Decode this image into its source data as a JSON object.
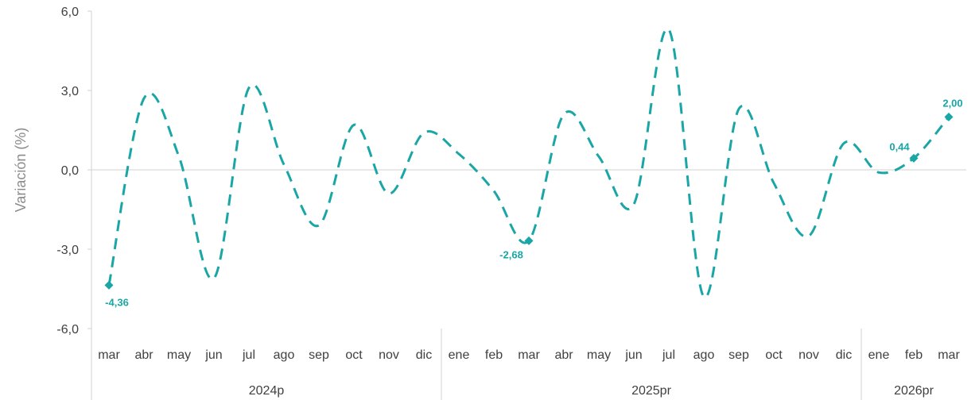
{
  "chart_data": {
    "type": "line",
    "ylabel": "Variación (%)",
    "ylim": [
      -6,
      6
    ],
    "yticks": [
      "6,0",
      "3,0",
      "0,0",
      "-3,0",
      "-6,0"
    ],
    "ytick_values": [
      6,
      3,
      0,
      -3,
      -6
    ],
    "months": [
      "mar",
      "abr",
      "may",
      "jun",
      "jul",
      "ago",
      "sep",
      "oct",
      "nov",
      "dic",
      "ene",
      "feb",
      "mar",
      "abr",
      "may",
      "jun",
      "jul",
      "ago",
      "sep",
      "oct",
      "nov",
      "dic",
      "ene",
      "feb",
      "mar"
    ],
    "years": [
      {
        "label": "2024p",
        "count": 10
      },
      {
        "label": "2025pr",
        "count": 12
      },
      {
        "label": "2026pr",
        "count": 3
      }
    ],
    "series": [
      {
        "color": "#1aa6a6",
        "values": [
          -4.36,
          2.7,
          0.5,
          -4.1,
          3.1,
          0.2,
          -2.1,
          1.7,
          -0.9,
          1.4,
          0.6,
          -0.8,
          -2.68,
          2.1,
          0.5,
          -1.3,
          5.3,
          -4.8,
          2.3,
          -0.5,
          -2.5,
          1.0,
          -0.1,
          0.44,
          2.0
        ]
      }
    ],
    "data_labels": [
      {
        "index": 0,
        "text": "-4,36",
        "pos": "below"
      },
      {
        "index": 12,
        "text": "-2,68",
        "pos": "left-below"
      },
      {
        "index": 23,
        "text": "0,44",
        "pos": "left-above"
      },
      {
        "index": 24,
        "text": "2,00",
        "pos": "above"
      }
    ],
    "axis_color": "#d0d0d0",
    "grid": false
  }
}
